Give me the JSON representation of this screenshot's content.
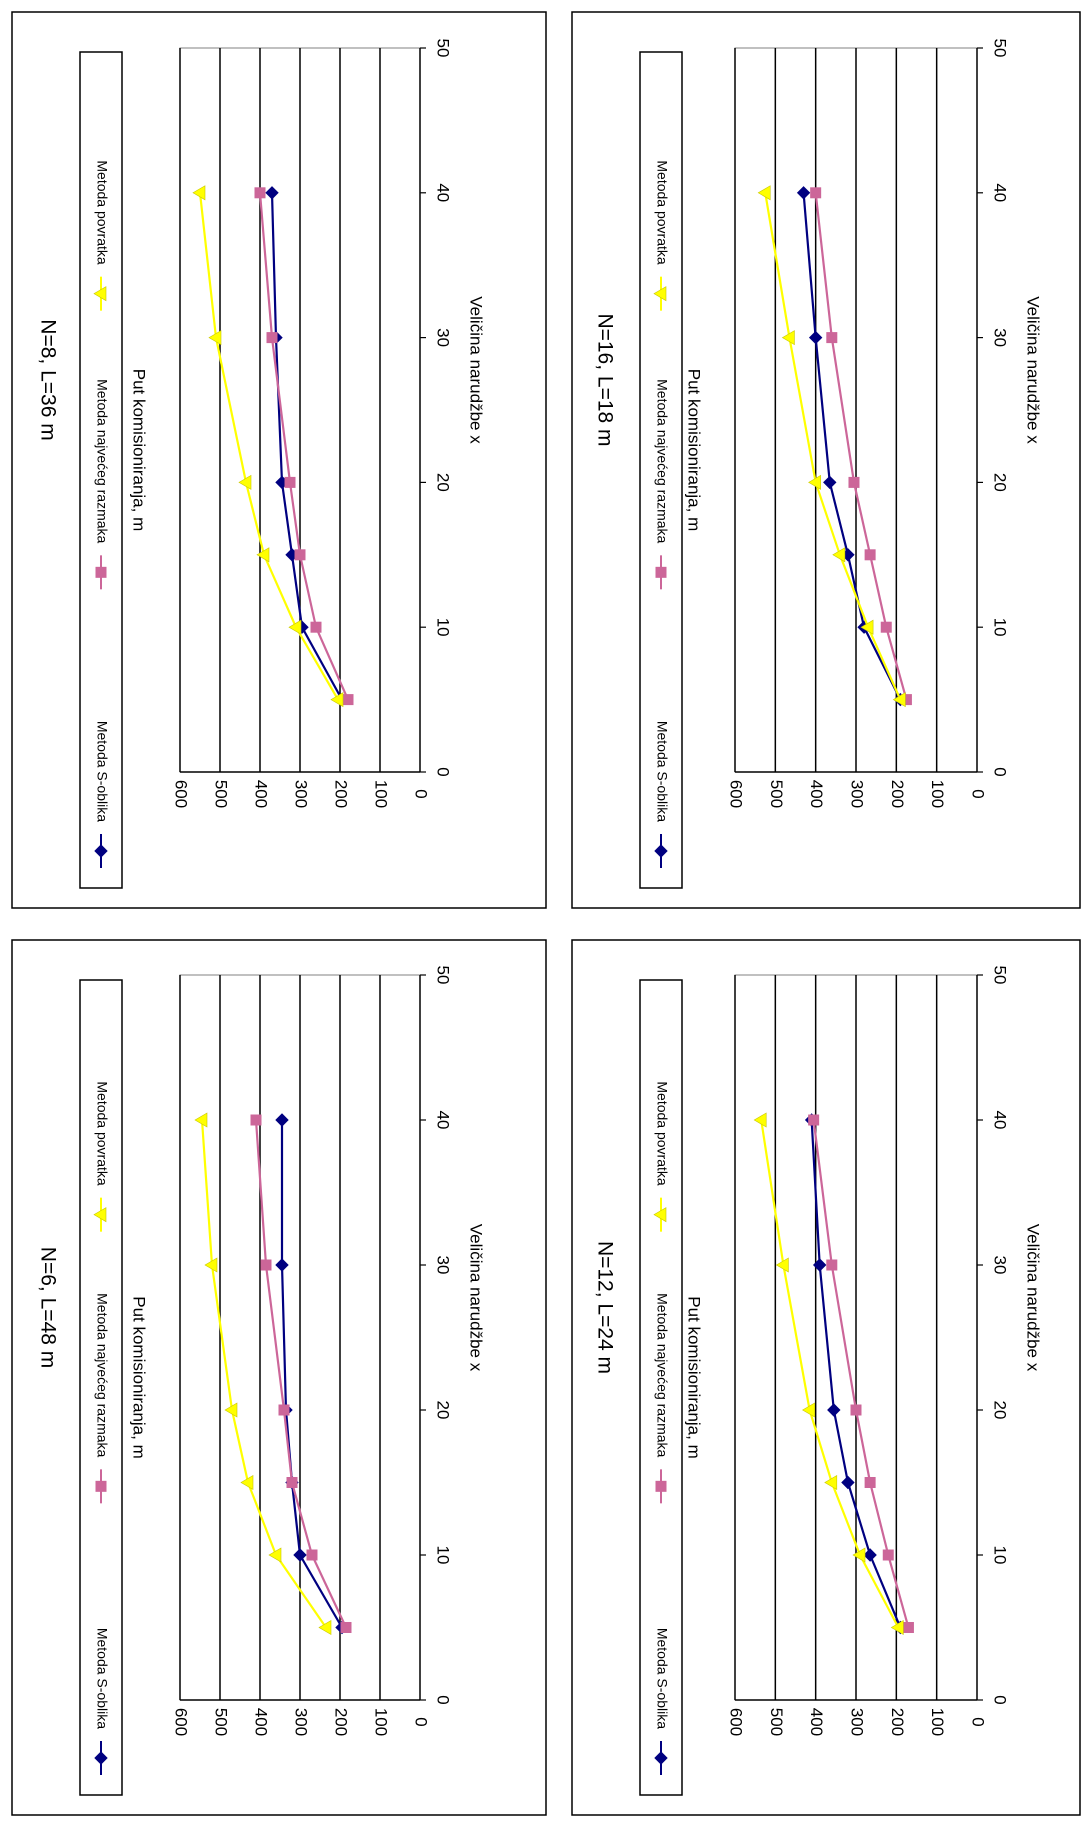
{
  "chart_data": [
    {
      "type": "line",
      "title": "N=6, L=48 m",
      "xlabel": "Veličina narudžbe x",
      "ylabel": "Put komisioniranja, m",
      "xlim": [
        0,
        50
      ],
      "ylim": [
        0,
        600
      ],
      "xticks": [
        "0",
        "10",
        "20",
        "30",
        "40",
        "50"
      ],
      "yticks": [
        "0",
        "100",
        "200",
        "300",
        "400",
        "500",
        "600"
      ],
      "grid": true,
      "legend_position": "top",
      "x": [
        5,
        10,
        15,
        20,
        30,
        40
      ],
      "series": [
        {
          "name": "Metoda S-oblika",
          "color": "#000080",
          "marker": "diamond",
          "values": [
            195,
            300,
            320,
            335,
            345,
            345
          ]
        },
        {
          "name": "Metoda najvećeg razmaka",
          "color": "#cc6699",
          "marker": "square",
          "values": [
            185,
            270,
            320,
            340,
            385,
            410
          ]
        },
        {
          "name": "Metoda povratka",
          "color": "#ffff00",
          "marker": "triangle",
          "values": [
            235,
            360,
            430,
            470,
            520,
            545
          ]
        }
      ]
    },
    {
      "type": "line",
      "title": "N=8, L=36 m",
      "xlabel": "Veličina narudžbe x",
      "ylabel": "Put komisioniranja, m",
      "xlim": [
        0,
        50
      ],
      "ylim": [
        0,
        600
      ],
      "xticks": [
        "0",
        "10",
        "20",
        "30",
        "40",
        "50"
      ],
      "yticks": [
        "0",
        "100",
        "200",
        "300",
        "400",
        "500",
        "600"
      ],
      "grid": true,
      "legend_position": "top",
      "x": [
        5,
        10,
        15,
        20,
        30,
        40
      ],
      "series": [
        {
          "name": "Metoda S-oblika",
          "color": "#000080",
          "marker": "diamond",
          "values": [
            195,
            295,
            320,
            345,
            360,
            370
          ]
        },
        {
          "name": "Metoda najvećeg razmaka",
          "color": "#cc6699",
          "marker": "square",
          "values": [
            180,
            260,
            300,
            325,
            370,
            400
          ]
        },
        {
          "name": "Metoda povratka",
          "color": "#ffff00",
          "marker": "triangle",
          "values": [
            205,
            310,
            390,
            435,
            510,
            550
          ]
        }
      ]
    },
    {
      "type": "line",
      "title": "N=12, L=24 m",
      "xlabel": "Veličina narudžbe x",
      "ylabel": "Put komisioniranja, m",
      "xlim": [
        0,
        50
      ],
      "ylim": [
        0,
        600
      ],
      "xticks": [
        "0",
        "10",
        "20",
        "30",
        "40",
        "50"
      ],
      "yticks": [
        "0",
        "100",
        "200",
        "300",
        "400",
        "500",
        "600"
      ],
      "grid": true,
      "legend_position": "top",
      "x": [
        5,
        10,
        15,
        20,
        30,
        40
      ],
      "series": [
        {
          "name": "Metoda S-oblika",
          "color": "#000080",
          "marker": "diamond",
          "values": [
            190,
            265,
            320,
            355,
            390,
            410
          ]
        },
        {
          "name": "Metoda najvećeg razmaka",
          "color": "#cc6699",
          "marker": "square",
          "values": [
            170,
            220,
            265,
            300,
            360,
            405
          ]
        },
        {
          "name": "Metoda povratka",
          "color": "#ffff00",
          "marker": "triangle",
          "values": [
            195,
            290,
            360,
            415,
            480,
            535
          ]
        }
      ]
    },
    {
      "type": "line",
      "title": "N=16, L=18 m",
      "xlabel": "Veličina narudžbe x",
      "ylabel": "Put komisioniranja, m",
      "xlim": [
        0,
        50
      ],
      "ylim": [
        0,
        600
      ],
      "xticks": [
        "0",
        "10",
        "20",
        "30",
        "40",
        "50"
      ],
      "yticks": [
        "0",
        "100",
        "200",
        "300",
        "400",
        "500",
        "600"
      ],
      "grid": true,
      "legend_position": "top",
      "x": [
        5,
        10,
        15,
        20,
        30,
        40
      ],
      "series": [
        {
          "name": "Metoda S-oblika",
          "color": "#000080",
          "marker": "diamond",
          "values": [
            190,
            280,
            320,
            365,
            400,
            430
          ]
        },
        {
          "name": "Metoda najvećeg razmaka",
          "color": "#cc6699",
          "marker": "square",
          "values": [
            175,
            225,
            265,
            305,
            360,
            400
          ]
        },
        {
          "name": "Metoda povratka",
          "color": "#ffff00",
          "marker": "triangle",
          "values": [
            190,
            270,
            340,
            400,
            465,
            525
          ]
        }
      ]
    }
  ]
}
